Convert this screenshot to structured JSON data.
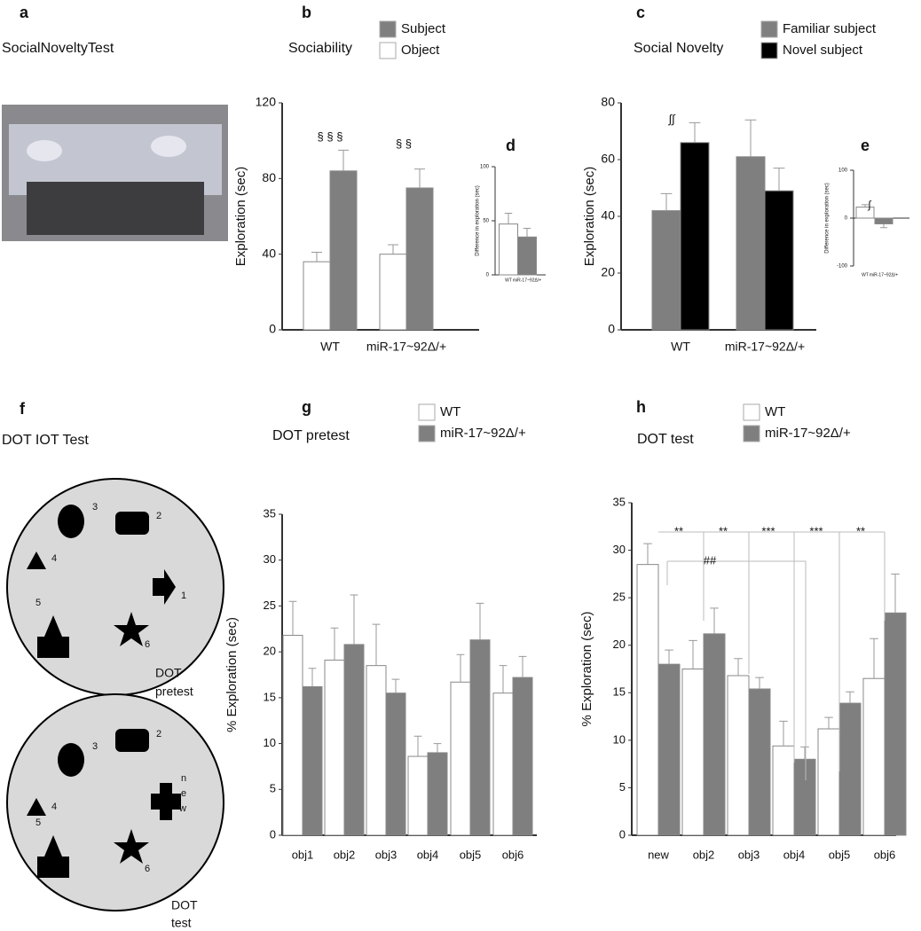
{
  "chart_data": [
    {
      "type": "image",
      "label": "a",
      "title": "SocialNoveltyTest"
    },
    {
      "type": "bar",
      "label": "b",
      "title": "Sociability",
      "y_label": "Exploration (sec)",
      "categories": [
        "WT",
        "miR-17~92Δ/+"
      ],
      "series": [
        {
          "name": "Object",
          "color": "#ffffff",
          "values": [
            36,
            40
          ],
          "errors": [
            5,
            5
          ]
        },
        {
          "name": "Subject",
          "color": "#7f7f7f",
          "values": [
            84,
            75
          ],
          "errors": [
            11,
            10
          ]
        }
      ],
      "ylim": [
        0,
        120
      ],
      "yticks": [
        0,
        40,
        80,
        120
      ],
      "annotations": [
        "§ § §",
        "§ §"
      ]
    },
    {
      "type": "bar",
      "label": "d",
      "y_label": "Difference in exploration (sec)",
      "categories": [
        "WT",
        "miR-17~92Δ/+"
      ],
      "values": [
        47,
        35
      ],
      "errors": [
        10,
        8
      ],
      "colors": [
        "#ffffff",
        "#7f7f7f"
      ],
      "ylim": [
        0,
        100
      ],
      "yticks": [
        0,
        50,
        100
      ]
    },
    {
      "type": "bar",
      "label": "c",
      "title": "Social Novelty",
      "y_label": "Exploration (sec)",
      "categories": [
        "WT",
        "miR-17~92Δ/+"
      ],
      "series": [
        {
          "name": "Familiar subject",
          "color": "#7f7f7f",
          "values": [
            42,
            61
          ],
          "errors": [
            6,
            13
          ]
        },
        {
          "name": "Novel subject",
          "color": "#000000",
          "values": [
            66,
            49
          ],
          "errors": [
            7,
            8
          ]
        }
      ],
      "ylim": [
        0,
        80
      ],
      "yticks": [
        0,
        20,
        40,
        60,
        80
      ],
      "annotations": [
        "∫∫"
      ]
    },
    {
      "type": "bar",
      "label": "e",
      "y_label": "Difference in exploration (sec)",
      "categories": [
        "WT",
        "miR-17~92Δ/+"
      ],
      "values": [
        23,
        -12
      ],
      "errors": [
        5,
        8
      ],
      "colors": [
        "#ffffff",
        "#7f7f7f"
      ],
      "ylim": [
        -100,
        100
      ],
      "yticks": [
        -100,
        0,
        100
      ],
      "annotations": [
        "∫"
      ]
    },
    {
      "type": "diagram",
      "label": "f",
      "title": "DOT IOT Test",
      "arenas": [
        {
          "caption": [
            "DOT",
            "pretest"
          ],
          "object_labels": [
            "3",
            "2",
            "4",
            "1",
            "5",
            "6"
          ]
        },
        {
          "caption": [
            "DOT",
            "test"
          ],
          "object_labels": [
            "3",
            "2",
            "4",
            "n",
            "e",
            "w",
            "5",
            "6"
          ]
        }
      ]
    },
    {
      "type": "bar",
      "label": "g",
      "title": "DOT pretest",
      "y_label": "% Exploration  (sec)",
      "categories": [
        "obj1",
        "obj2",
        "obj3",
        "obj4",
        "obj5",
        "obj6"
      ],
      "series": [
        {
          "name": "WT",
          "color": "#ffffff",
          "values": [
            21.8,
            19.1,
            18.5,
            8.6,
            16.7,
            15.5
          ],
          "errors": [
            3.7,
            3.5,
            4.5,
            2.2,
            3.0,
            3.0
          ]
        },
        {
          "name": "miR-17~92Δ/+",
          "color": "#7f7f7f",
          "values": [
            16.2,
            20.8,
            15.5,
            9.0,
            21.3,
            17.2
          ],
          "errors": [
            2.0,
            5.4,
            1.5,
            1.0,
            4.0,
            2.3
          ]
        }
      ],
      "ylim": [
        0,
        35
      ],
      "yticks": [
        0,
        5,
        10,
        15,
        20,
        25,
        30,
        35
      ]
    },
    {
      "type": "bar",
      "label": "h",
      "title": "DOT test",
      "y_label": "% Exploration (sec)",
      "categories": [
        "new",
        "obj2",
        "obj3",
        "obj4",
        "obj5",
        "obj6"
      ],
      "series": [
        {
          "name": "WT",
          "color": "#ffffff",
          "values": [
            28.5,
            17.5,
            16.8,
            9.4,
            11.2,
            16.5
          ],
          "errors": [
            2.2,
            3.0,
            1.8,
            2.6,
            1.2,
            4.2
          ]
        },
        {
          "name": "miR-17~92Δ/+",
          "color": "#7f7f7f",
          "values": [
            18.0,
            21.2,
            15.4,
            8.0,
            13.9,
            23.4
          ],
          "errors": [
            1.5,
            2.7,
            1.2,
            1.3,
            1.2,
            4.1
          ]
        }
      ],
      "ylim": [
        0,
        35
      ],
      "yticks": [
        0,
        5,
        10,
        15,
        20,
        25,
        30,
        35
      ],
      "annotations": [
        "**",
        "**",
        "***",
        "***",
        "**",
        "##"
      ]
    }
  ]
}
